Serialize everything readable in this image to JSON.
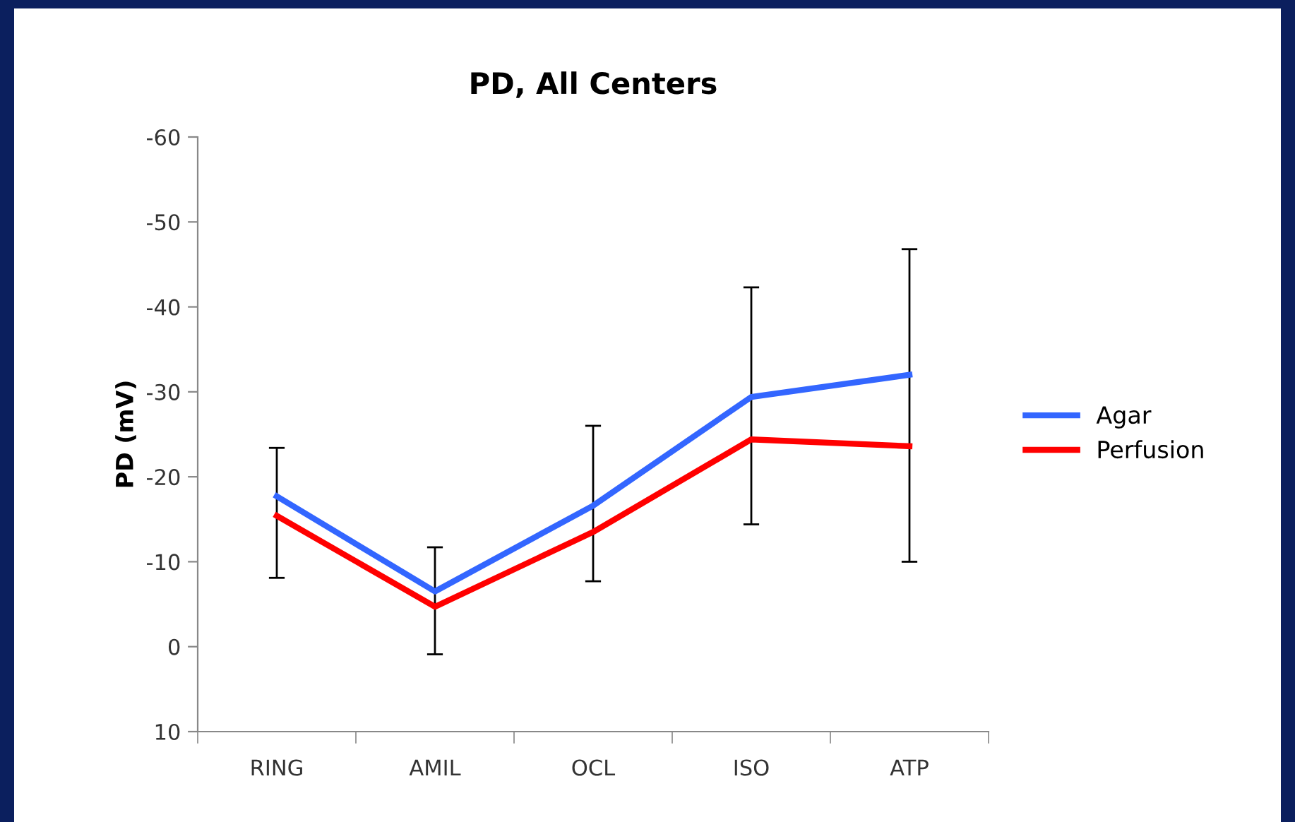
{
  "chart_data": {
    "type": "line",
    "title": "PD, All Centers",
    "ylabel": "PD (mV)",
    "categories": [
      "RING",
      "AMIL",
      "OCL",
      "ISO",
      "ATP"
    ],
    "series": [
      {
        "name": "Agar",
        "color": "#3366ff",
        "values": [
          -17.7,
          -6.5,
          -16.6,
          -29.4,
          -32.0
        ],
        "errors": [
          [
            -23.4,
            -8.1
          ],
          [
            -11.7,
            0.9
          ],
          [
            -26.0,
            -7.7
          ],
          [
            -42.3,
            -14.4
          ],
          [
            -46.8,
            -10.0
          ]
        ]
      },
      {
        "name": "Perfusion",
        "color": "#ff0000",
        "values": [
          -15.4,
          -4.7,
          -13.5,
          -24.4,
          -23.6
        ]
      }
    ],
    "ylim": [
      10,
      -60
    ],
    "yticks": [
      -60,
      -50,
      -40,
      -30,
      -20,
      -10,
      0,
      10
    ],
    "grid": false,
    "legend": "right",
    "marker": "none",
    "line_style": "solid"
  }
}
